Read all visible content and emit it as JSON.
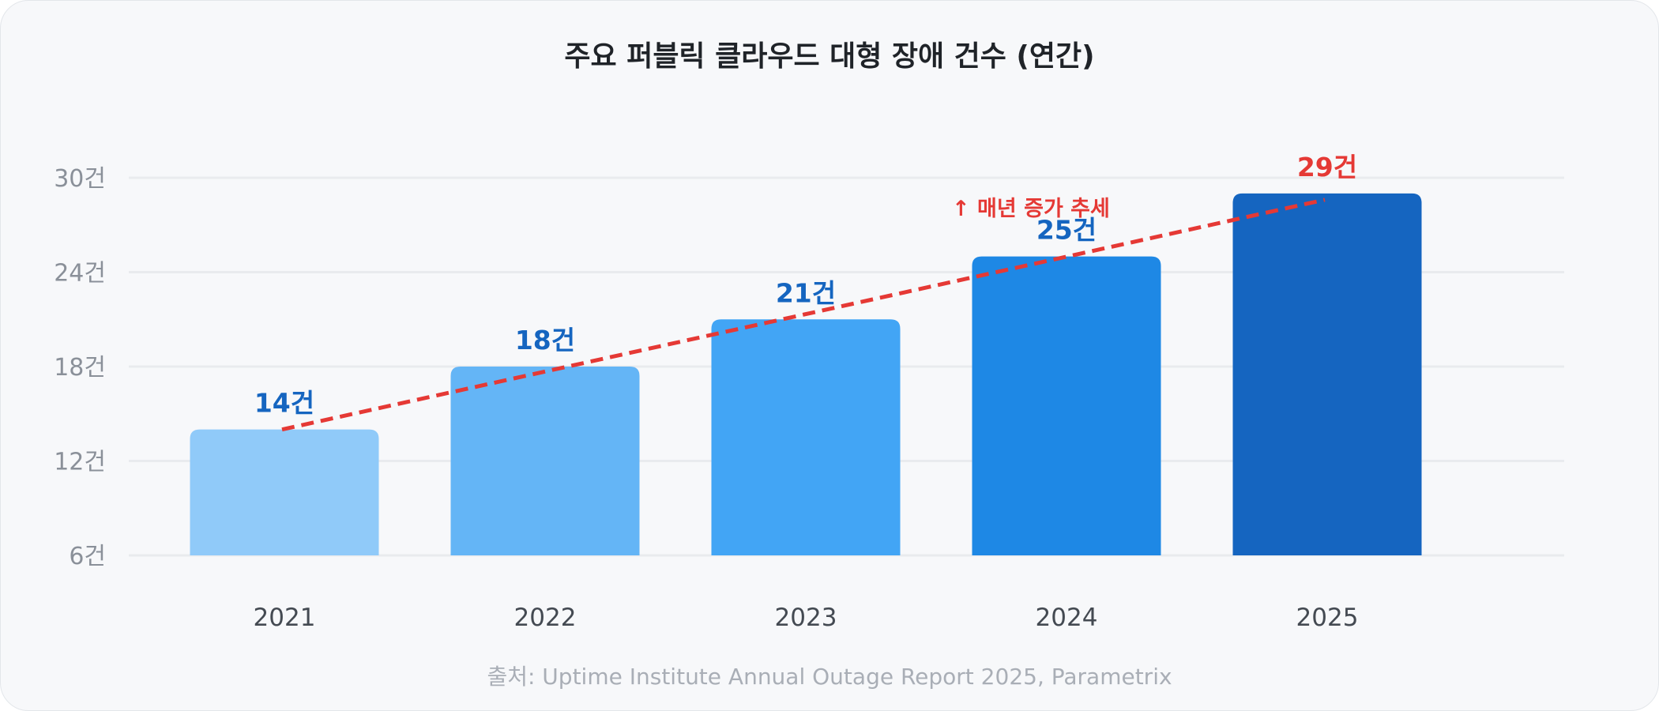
{
  "chart_data": {
    "type": "bar",
    "title": "주요 퍼블릭 클라우드 대형 장애 건수 (연간)",
    "categories": [
      "2021",
      "2022",
      "2023",
      "2024",
      "2025"
    ],
    "values": [
      14,
      18,
      21,
      25,
      29
    ],
    "value_labels": [
      "14건",
      "18건",
      "21건",
      "25건",
      "29건"
    ],
    "bar_colors": [
      "#90caf9",
      "#64b5f6",
      "#42a5f5",
      "#1e88e5",
      "#1565c0"
    ],
    "ylim": [
      6,
      30
    ],
    "yticks": [
      6,
      12,
      18,
      24,
      30
    ],
    "ytick_labels": [
      "6건",
      "12건",
      "18건",
      "24건",
      "30건"
    ],
    "grid": true,
    "trend_line": {
      "from": [
        2021,
        14
      ],
      "to": [
        2025,
        28.6
      ],
      "color": "#e53935",
      "style": "dashed"
    },
    "annotation": "↑ 매년 증가 추세",
    "highlight_color": "#e53935",
    "label_color": "#1565c0",
    "source": "출처: Uptime Institute Annual Outage Report 2025, Parametrix",
    "xlabel": "",
    "ylabel": ""
  }
}
